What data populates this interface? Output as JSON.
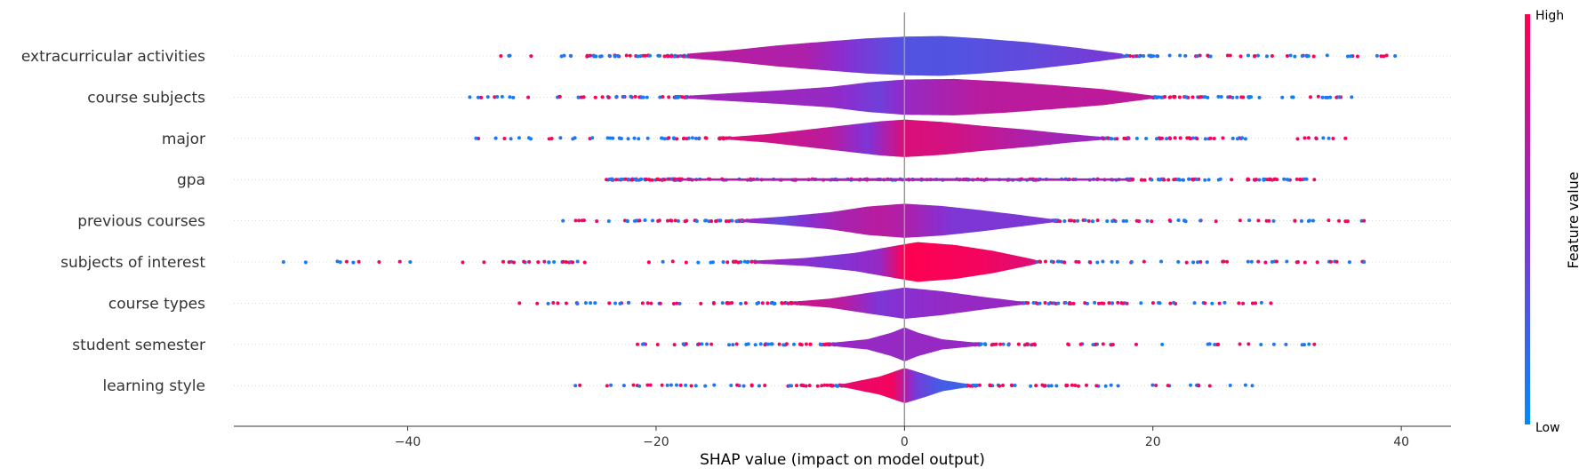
{
  "chart_data": {
    "type": "violin",
    "plot_kind": "SHAP summary (violin)",
    "xlabel": "SHAP value (impact on model output)",
    "xlim": [
      -54,
      44
    ],
    "xticks": [
      -40,
      -20,
      0,
      20,
      40
    ],
    "xtick_labels": [
      "−40",
      "−20",
      "0",
      "20",
      "40"
    ],
    "colorbar": {
      "title": "Feature value",
      "high_label": "High",
      "low_label": "Low",
      "low_color": "#008bfb",
      "mid_color": "#8a2ed0",
      "high_color": "#ff0051"
    },
    "grid": "dotted horizontal per feature",
    "features": [
      {
        "name": "extracurricular activities",
        "range": [
          -32.5,
          39.5
        ],
        "violin_extent": [
          -17.5,
          17.5
        ],
        "shape": [
          [
            -17.5,
            0.08
          ],
          [
            -14,
            0.2
          ],
          [
            -10,
            0.38
          ],
          [
            -6,
            0.52
          ],
          [
            -3,
            0.62
          ],
          [
            0,
            0.68
          ],
          [
            3,
            0.7
          ],
          [
            6,
            0.62
          ],
          [
            10,
            0.48
          ],
          [
            14,
            0.28
          ],
          [
            17.5,
            0.08
          ]
        ],
        "color_profile": [
          [
            -17.5,
            0.7
          ],
          [
            -8,
            0.65
          ],
          [
            -4,
            0.45
          ],
          [
            0,
            0.3
          ],
          [
            4,
            0.3
          ],
          [
            10,
            0.35
          ],
          [
            17.5,
            0.45
          ]
        ],
        "density": 1.0
      },
      {
        "name": "course subjects",
        "range": [
          -35,
          36
        ],
        "violin_extent": [
          -17.5,
          20
        ],
        "shape": [
          [
            -17.5,
            0.05
          ],
          [
            -14,
            0.14
          ],
          [
            -10,
            0.24
          ],
          [
            -6,
            0.36
          ],
          [
            -3,
            0.52
          ],
          [
            0,
            0.62
          ],
          [
            4,
            0.64
          ],
          [
            8,
            0.55
          ],
          [
            12,
            0.42
          ],
          [
            16,
            0.28
          ],
          [
            20,
            0.05
          ]
        ],
        "color_profile": [
          [
            -17.5,
            0.6
          ],
          [
            -6,
            0.55
          ],
          [
            -2,
            0.4
          ],
          [
            0,
            0.55
          ],
          [
            6,
            0.7
          ],
          [
            20,
            0.72
          ]
        ],
        "density": 1.0
      },
      {
        "name": "major",
        "range": [
          -34.5,
          35.5
        ],
        "violin_extent": [
          -14,
          16
        ],
        "shape": [
          [
            -14,
            0.05
          ],
          [
            -11,
            0.15
          ],
          [
            -8,
            0.3
          ],
          [
            -5,
            0.45
          ],
          [
            -2,
            0.6
          ],
          [
            0,
            0.66
          ],
          [
            3,
            0.58
          ],
          [
            6,
            0.45
          ],
          [
            10,
            0.3
          ],
          [
            13,
            0.16
          ],
          [
            16,
            0.05
          ]
        ],
        "color_profile": [
          [
            -14,
            0.85
          ],
          [
            -6,
            0.7
          ],
          [
            -3,
            0.45
          ],
          [
            0,
            0.85
          ],
          [
            4,
            0.8
          ],
          [
            10,
            0.65
          ],
          [
            16,
            0.55
          ]
        ],
        "density": 1.0
      },
      {
        "name": "gpa",
        "range": [
          -24,
          33
        ],
        "violin_extent": [
          -18,
          18
        ],
        "shape": [
          [
            -18,
            0.04
          ],
          [
            0,
            0.05
          ],
          [
            18,
            0.04
          ]
        ],
        "color_profile": [
          [
            -18,
            0.7
          ],
          [
            0,
            0.6
          ],
          [
            18,
            0.6
          ]
        ],
        "density": 1.4
      },
      {
        "name": "previous courses",
        "range": [
          -27.5,
          37
        ],
        "violin_extent": [
          -13,
          12
        ],
        "shape": [
          [
            -13,
            0.05
          ],
          [
            -10,
            0.14
          ],
          [
            -6,
            0.3
          ],
          [
            -3,
            0.5
          ],
          [
            0,
            0.6
          ],
          [
            3,
            0.52
          ],
          [
            6,
            0.38
          ],
          [
            9,
            0.22
          ],
          [
            12,
            0.05
          ]
        ],
        "color_profile": [
          [
            -13,
            0.6
          ],
          [
            -10,
            0.35
          ],
          [
            -6,
            0.6
          ],
          [
            -2,
            0.7
          ],
          [
            0,
            0.65
          ],
          [
            4,
            0.45
          ],
          [
            12,
            0.45
          ]
        ],
        "density": 1.0
      },
      {
        "name": "subjects of interest",
        "range": [
          -50,
          37
        ],
        "violin_extent": [
          -12,
          10.5
        ],
        "shape": [
          [
            -12,
            0.05
          ],
          [
            -8,
            0.14
          ],
          [
            -4,
            0.32
          ],
          [
            -1,
            0.55
          ],
          [
            1,
            0.7
          ],
          [
            4,
            0.6
          ],
          [
            7,
            0.4
          ],
          [
            10.5,
            0.08
          ]
        ],
        "color_profile": [
          [
            -12,
            0.6
          ],
          [
            -6,
            0.45
          ],
          [
            -2,
            0.55
          ],
          [
            0,
            1.0
          ],
          [
            6,
            0.95
          ],
          [
            10.5,
            0.85
          ]
        ],
        "density": 1.0
      },
      {
        "name": "course types",
        "range": [
          -31,
          29.5
        ],
        "violin_extent": [
          -9,
          9.5
        ],
        "shape": [
          [
            -9,
            0.05
          ],
          [
            -6,
            0.16
          ],
          [
            -3,
            0.36
          ],
          [
            0,
            0.55
          ],
          [
            3,
            0.42
          ],
          [
            6,
            0.24
          ],
          [
            9.5,
            0.05
          ]
        ],
        "color_profile": [
          [
            -9,
            0.8
          ],
          [
            -5,
            0.7
          ],
          [
            -2,
            0.45
          ],
          [
            0,
            0.5
          ],
          [
            4,
            0.55
          ],
          [
            9.5,
            0.55
          ]
        ],
        "density": 1.0
      },
      {
        "name": "student semester",
        "range": [
          -21.5,
          33
        ],
        "violin_extent": [
          -6,
          6
        ],
        "shape": [
          [
            -6,
            0.05
          ],
          [
            -3,
            0.18
          ],
          [
            -1,
            0.42
          ],
          [
            0,
            0.6
          ],
          [
            1,
            0.42
          ],
          [
            3,
            0.18
          ],
          [
            6,
            0.05
          ]
        ],
        "color_profile": [
          [
            -6,
            0.55
          ],
          [
            0,
            0.55
          ],
          [
            6,
            0.55
          ]
        ],
        "density": 1.0
      },
      {
        "name": "learning style",
        "range": [
          -26.5,
          28
        ],
        "violin_extent": [
          -5,
          5
        ],
        "shape": [
          [
            -5,
            0.05
          ],
          [
            -2,
            0.32
          ],
          [
            0,
            0.62
          ],
          [
            1.5,
            0.42
          ],
          [
            3,
            0.2
          ],
          [
            5,
            0.06
          ]
        ],
        "color_profile": [
          [
            -5,
            0.9
          ],
          [
            -1,
            0.95
          ],
          [
            1,
            0.4
          ],
          [
            3,
            0.25
          ],
          [
            5,
            0.2
          ]
        ],
        "density": 1.0
      }
    ]
  }
}
